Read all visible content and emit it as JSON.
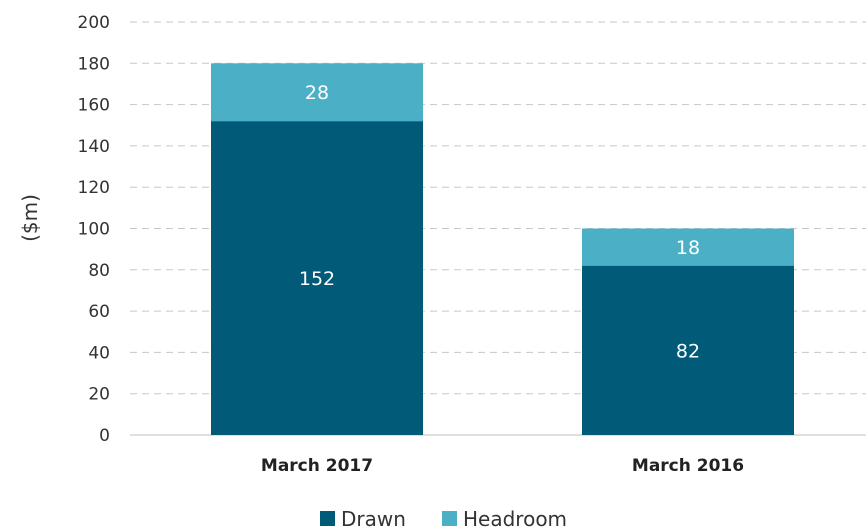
{
  "chart_data": {
    "type": "bar",
    "stacked": true,
    "categories": [
      "March 2017",
      "March 2016"
    ],
    "series": [
      {
        "name": "Drawn",
        "values": [
          152,
          82
        ],
        "color": "#005a78"
      },
      {
        "name": "Headroom",
        "values": [
          28,
          18
        ],
        "color": "#4bafc6"
      }
    ],
    "ylabel": "($m)",
    "ylim": [
      0,
      200
    ],
    "yticks": [
      0,
      20,
      40,
      60,
      80,
      100,
      120,
      140,
      160,
      180,
      200
    ],
    "grid": true,
    "legend": "bottom"
  }
}
